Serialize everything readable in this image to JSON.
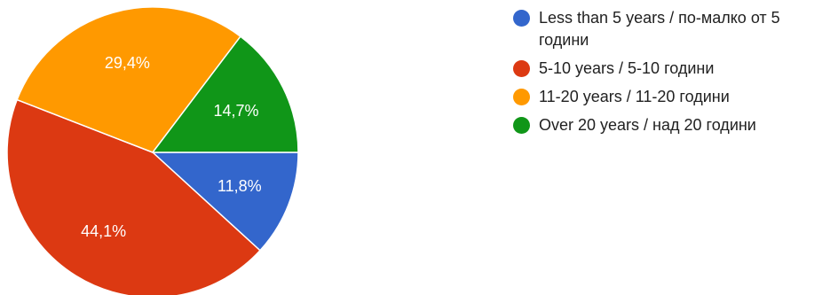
{
  "chart_data": {
    "type": "pie",
    "slices": [
      {
        "label": "Less than 5 years / по-малко от 5 години",
        "value": 11.8,
        "display": "11,8%",
        "color": "#3366cc"
      },
      {
        "label": "5-10 years / 5-10 години",
        "value": 44.1,
        "display": "44,1%",
        "color": "#dc3912"
      },
      {
        "label": "11-20 years / 11-20 години",
        "value": 29.4,
        "display": "29,4%",
        "color": "#ff9900"
      },
      {
        "label": "Over 20 years / над 20 години",
        "value": 14.7,
        "display": "14,7%",
        "color": "#109618"
      }
    ],
    "legend_position": "right"
  }
}
